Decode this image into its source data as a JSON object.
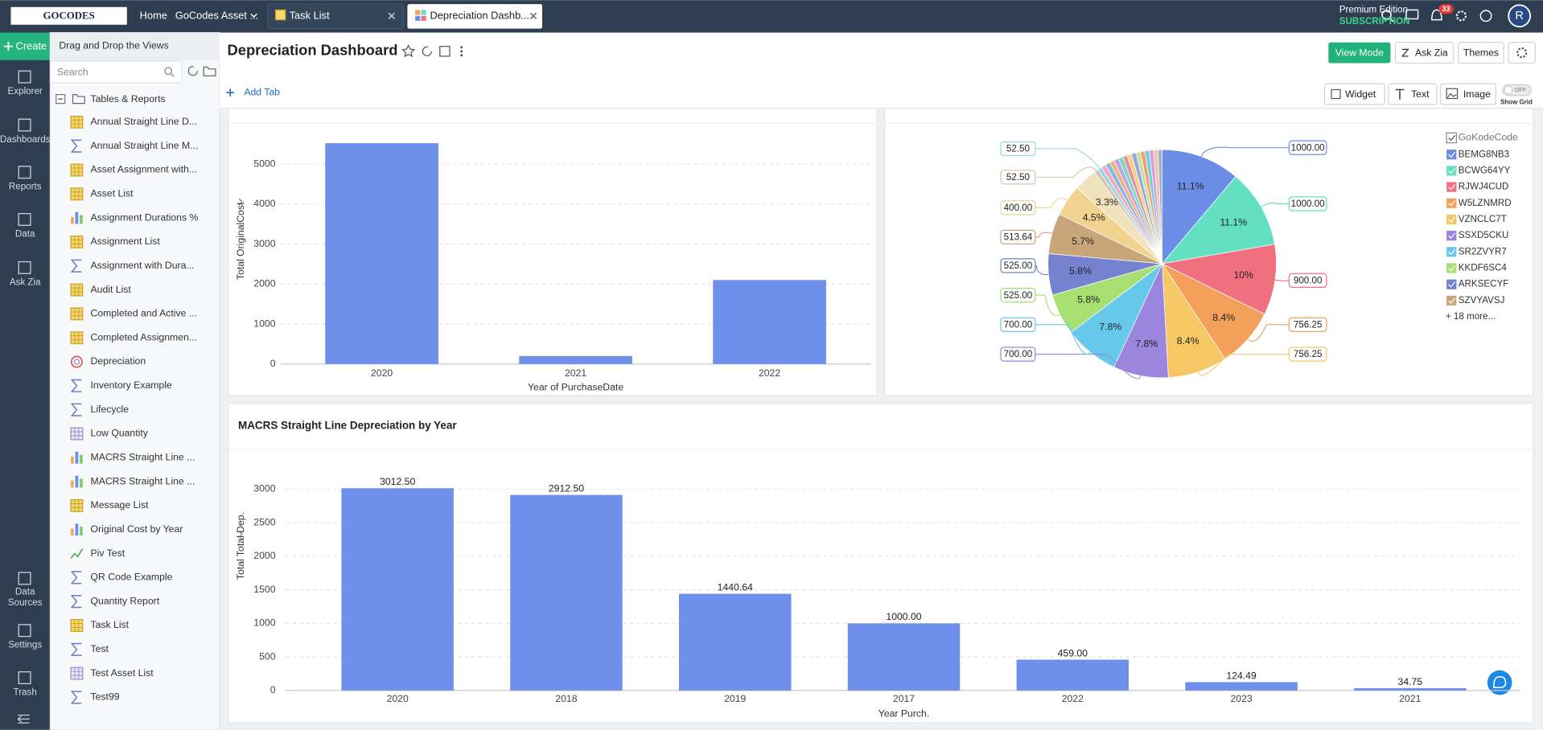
{
  "topbar": {
    "logo": "GOCODES",
    "tabs": [
      "Home",
      "GoCodes Asset ...",
      "Task List",
      "Depreciation Dashb..."
    ],
    "edition": "Premium Edition",
    "subscription": "SUBSCRIPTION",
    "notifications": 33,
    "avatar": "R"
  },
  "nav": {
    "create": "Create",
    "top": [
      "Explorer",
      "Dashboards",
      "Reports",
      "Data",
      "Ask Zia"
    ],
    "bottom": [
      [
        "Data",
        "Sources"
      ],
      "Settings",
      "Trash"
    ]
  },
  "sidebar": {
    "hint": "Drag and Drop the Views",
    "search": "Search",
    "root": "Tables & Reports",
    "items": [
      {
        "label": "Annual Straight Line D...",
        "icon": "table"
      },
      {
        "label": "Annual Straight Line M...",
        "icon": "query"
      },
      {
        "label": "Asset Assignment with...",
        "icon": "table"
      },
      {
        "label": "Asset List",
        "icon": "table"
      },
      {
        "label": "Assignment Durations %",
        "icon": "chart"
      },
      {
        "label": "Assignment List",
        "icon": "table"
      },
      {
        "label": "Assignment with Dura...",
        "icon": "query"
      },
      {
        "label": "Audit List",
        "icon": "table"
      },
      {
        "label": "Completed and Active ...",
        "icon": "table"
      },
      {
        "label": "Completed Assignmen...",
        "icon": "table"
      },
      {
        "label": "Depreciation",
        "icon": "dashboard"
      },
      {
        "label": "Inventory Example",
        "icon": "query"
      },
      {
        "label": "Lifecycle",
        "icon": "query"
      },
      {
        "label": "Low Quantity",
        "icon": "pivot"
      },
      {
        "label": "MACRS Straight Line ...",
        "icon": "chart"
      },
      {
        "label": "MACRS Straight Line ...",
        "icon": "chart"
      },
      {
        "label": "Message List",
        "icon": "table"
      },
      {
        "label": "Original Cost by Year",
        "icon": "chart"
      },
      {
        "label": "Piv Test",
        "icon": "trend"
      },
      {
        "label": "QR Code Example",
        "icon": "query"
      },
      {
        "label": "Quantity Report",
        "icon": "query"
      },
      {
        "label": "Task List",
        "icon": "table"
      },
      {
        "label": "Test",
        "icon": "query"
      },
      {
        "label": "Test Asset List",
        "icon": "pivot"
      },
      {
        "label": "Test99",
        "icon": "query"
      }
    ]
  },
  "header": {
    "title": "Depreciation Dashboard",
    "view_mode": "View Mode",
    "ask_zia": "Ask Zia",
    "themes": "Themes",
    "add_tab": "Add Tab",
    "widget": "Widget",
    "text": "Text",
    "image": "Image",
    "toggle": "OFF",
    "show_grid": "Show Grid"
  },
  "chart_data": [
    {
      "type": "bar",
      "categories": [
        "2020",
        "2021",
        "2022"
      ],
      "values": [
        5520,
        200,
        2100
      ],
      "color": "#6e8fea",
      "xlabel": "Year of PurchaseDate",
      "ylabel": "Total OriginalCost",
      "ylim": [
        0,
        6000
      ],
      "yticks": [
        0,
        1000,
        2000,
        3000,
        4000,
        5000
      ],
      "grid": true
    },
    {
      "type": "pie",
      "categories": [
        "BEMG8NB3",
        "BCWG64YY",
        "RJWJ4CUD",
        "W5LZNMRD",
        "VZNCLC7T",
        "SSXD5CKU",
        "SR2ZVYR7",
        "KKDF6SC4",
        "ARKSECYF",
        "SZVYAVSJ",
        null,
        null,
        null,
        null,
        null,
        null,
        null,
        null,
        null,
        null,
        null,
        null,
        null,
        null,
        null,
        null,
        null,
        null
      ],
      "values": [
        1000,
        1000,
        900,
        756.25,
        756.25,
        700,
        700,
        525,
        525,
        513.64,
        400,
        296,
        52.5,
        52.5,
        60,
        60,
        60,
        60,
        58,
        58,
        58,
        57,
        57,
        57,
        55,
        55,
        55,
        52.86
      ],
      "value_labels": [
        "1000.00",
        "1000.00",
        "900.00",
        "756.25",
        "756.25",
        "700.00",
        "700.00",
        "525.00",
        "525.00",
        "513.64",
        "400.00",
        null,
        "52.50",
        "52.50",
        null,
        null,
        null,
        null,
        null,
        null,
        null,
        null,
        null,
        null,
        null,
        null,
        null,
        null
      ],
      "percent_labels": [
        "11.1%",
        "11.1%",
        "10%",
        "8.4%",
        "8.4%",
        "7.8%",
        "7.8%",
        "5.8%",
        "5.8%",
        "5.7%",
        "4.5%",
        "3.3%",
        null,
        null,
        null,
        null,
        null,
        null,
        null,
        null,
        null,
        null,
        null,
        null,
        null,
        null,
        null,
        null
      ],
      "colors": [
        "#6b8de6",
        "#63dfc1",
        "#f07080",
        "#f5a05a",
        "#f6c765",
        "#9a86de",
        "#66c9ec",
        "#a8df73",
        "#7482d0",
        "#c9a57a",
        "#f1d28f",
        "#efe3bd",
        "#d8c3ad",
        "#9ad7e8",
        "#f4a8b8",
        "#7fb9e6",
        "#f2b27a",
        "#b7a5e5",
        "#80d7c5",
        "#e98f9b",
        "#f7d37e",
        "#8fa7ea",
        "#c8e29a",
        "#f0a07b",
        "#6fd0e0",
        "#d99ee0",
        "#f5c4a0",
        "#9fb0d8"
      ],
      "legend_title": "GoKodeCode",
      "legend_more": "+ 18 more...",
      "legend_position": "right"
    },
    {
      "type": "bar",
      "title": "MACRS Straight Line Depreciation by Year",
      "categories": [
        "2020",
        "2018",
        "2019",
        "2017",
        "2022",
        "2023",
        "2021"
      ],
      "values": [
        3012.5,
        2912.5,
        1440.64,
        1000,
        459,
        124.49,
        34.75
      ],
      "value_labels": [
        "3012.50",
        "2912.50",
        "1440.64",
        "1000.00",
        "459.00",
        "124.49",
        "34.75"
      ],
      "color": "#6e8fea",
      "xlabel": "Year Purch.",
      "ylabel": "Total Total Dep.",
      "ylim": [
        0,
        3500
      ],
      "yticks": [
        0,
        500,
        1000,
        1500,
        2000,
        2500,
        3000
      ],
      "grid": true
    }
  ]
}
